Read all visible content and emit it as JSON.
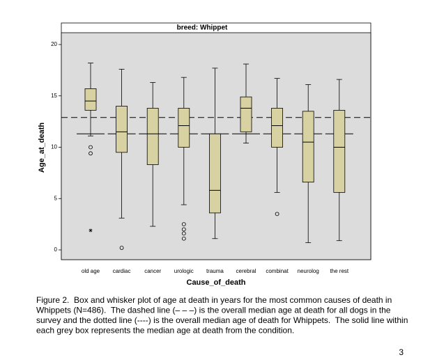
{
  "chart_data": {
    "type": "box",
    "title": "breed: Whippet",
    "x_label": "Cause_of_death",
    "y_label": "Age_at_death",
    "categories": [
      "old age",
      "cardiac",
      "cancer",
      "urologic",
      "trauma",
      "cerebral",
      "combinat",
      "neurolog",
      "the rest"
    ],
    "boxes": [
      {
        "min": 11.1,
        "q1": 13.6,
        "median": 14.5,
        "q3": 15.7,
        "max": 18.2,
        "outliers": [
          10.0,
          9.4
        ],
        "extremes": [
          1.9
        ]
      },
      {
        "min": 3.1,
        "q1": 9.5,
        "median": 11.5,
        "q3": 14.0,
        "max": 17.6,
        "outliers": [
          0.2
        ],
        "extremes": []
      },
      {
        "min": 2.3,
        "q1": 8.3,
        "median": 11.3,
        "q3": 13.8,
        "max": 16.3,
        "outliers": [],
        "extremes": []
      },
      {
        "min": 4.4,
        "q1": 10.0,
        "median": 12.1,
        "q3": 13.8,
        "max": 16.8,
        "outliers": [
          2.5,
          2.0,
          1.6,
          1.1
        ],
        "extremes": []
      },
      {
        "min": 1.1,
        "q1": 3.6,
        "median": 5.8,
        "q3": 11.3,
        "max": 17.7,
        "outliers": [],
        "extremes": []
      },
      {
        "min": 10.4,
        "q1": 11.5,
        "median": 13.8,
        "q3": 14.9,
        "max": 18.1,
        "outliers": [],
        "extremes": []
      },
      {
        "min": 5.6,
        "q1": 10.0,
        "median": 12.1,
        "q3": 13.8,
        "max": 16.7,
        "outliers": [
          3.5
        ],
        "extremes": []
      },
      {
        "min": 0.7,
        "q1": 6.6,
        "median": 10.5,
        "q3": 13.5,
        "max": 16.1,
        "outliers": [],
        "extremes": []
      },
      {
        "min": 0.9,
        "q1": 5.6,
        "median": 10.0,
        "q3": 13.6,
        "max": 16.6,
        "outliers": [],
        "extremes": []
      }
    ],
    "reference_lines": [
      {
        "value": 12.9,
        "style": "dashed"
      },
      {
        "value": 11.3,
        "style": "dotted"
      }
    ],
    "color": "#d8d2a2",
    "background": "#dcdcdc",
    "ylim": [
      -0.95,
      21.15
    ],
    "yticks": [
      0,
      5,
      10,
      15,
      20
    ]
  },
  "caption": [
    "Figure 2.  Box and whisker plot of age at death in years for the most common causes of death in",
    "Whippets (N=486).  The dashed line (– – –) is the overall median age at death for all dogs in the",
    "survey and the dotted line (----) is the overall median age of death for Whippets.  The solid line within",
    "each grey box represents the median age at death from the condition."
  ],
  "page_number": "3"
}
